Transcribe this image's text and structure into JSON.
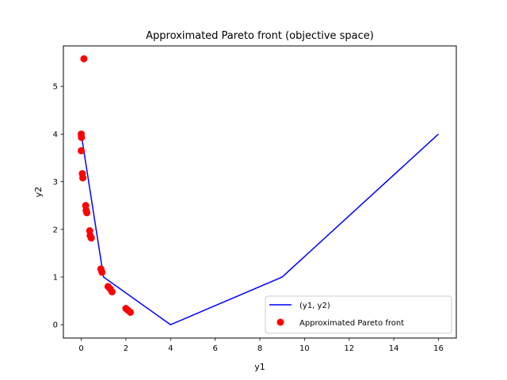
{
  "chart_data": {
    "type": "line+scatter",
    "title": "Approximated Pareto front (objective space)",
    "xlabel": "y1",
    "ylabel": "y2",
    "xlim": [
      -0.8,
      16.8
    ],
    "ylim": [
      -0.28,
      5.85
    ],
    "xticks": [
      0,
      2,
      4,
      6,
      8,
      10,
      12,
      14,
      16
    ],
    "yticks": [
      0,
      1,
      2,
      3,
      4,
      5
    ],
    "grid": false,
    "legend_position": "lower-right",
    "series": [
      {
        "name": "(y1, y2)",
        "kind": "line",
        "color": "#0000ff",
        "x": [
          0,
          1,
          4,
          9,
          16
        ],
        "y": [
          4,
          1,
          0,
          1,
          4
        ]
      },
      {
        "name": "Approximated Pareto front",
        "kind": "scatter",
        "color": "#ff0000",
        "x": [
          0.12,
          0.0,
          0.01,
          0.0,
          0.05,
          0.07,
          0.2,
          0.22,
          0.25,
          0.38,
          0.4,
          0.45,
          0.88,
          0.93,
          1.2,
          1.3,
          1.38,
          2.0,
          2.1,
          2.2
        ],
        "y": [
          5.58,
          4.0,
          3.93,
          3.65,
          3.17,
          3.08,
          2.5,
          2.4,
          2.35,
          1.97,
          1.87,
          1.82,
          1.17,
          1.1,
          0.8,
          0.75,
          0.69,
          0.34,
          0.3,
          0.26
        ]
      }
    ]
  }
}
